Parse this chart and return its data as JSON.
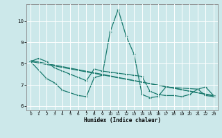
{
  "xlabel": "Humidex (Indice chaleur)",
  "background_color": "#cce8ea",
  "grid_color": "#ffffff",
  "line_color": "#1a7a6e",
  "xlim": [
    -0.5,
    23.5
  ],
  "ylim": [
    5.8,
    10.8
  ],
  "xticks": [
    0,
    1,
    2,
    3,
    4,
    5,
    6,
    7,
    8,
    9,
    10,
    11,
    12,
    13,
    14,
    15,
    16,
    17,
    18,
    19,
    20,
    21,
    22,
    23
  ],
  "yticks": [
    6,
    7,
    8,
    9,
    10
  ],
  "line1_x": [
    0,
    1,
    2,
    3,
    4,
    5,
    6,
    7,
    8,
    9,
    10,
    11,
    12,
    13,
    14,
    15,
    16,
    17,
    18,
    19,
    20,
    21,
    22,
    23
  ],
  "line1_y": [
    8.1,
    8.25,
    8.1,
    7.8,
    7.65,
    7.5,
    7.35,
    7.2,
    7.75,
    7.65,
    7.6,
    7.55,
    7.5,
    7.45,
    7.4,
    6.7,
    6.55,
    6.5,
    6.5,
    6.45,
    6.55,
    6.8,
    6.9,
    6.5
  ],
  "line2_x": [
    0,
    2,
    3,
    4,
    6,
    7,
    8,
    9,
    10,
    11,
    12,
    13,
    14,
    15,
    16,
    17,
    21,
    22,
    23
  ],
  "line2_y": [
    8.1,
    7.3,
    7.1,
    6.75,
    6.5,
    6.45,
    7.35,
    7.45,
    9.5,
    10.55,
    9.3,
    8.45,
    6.55,
    6.4,
    6.45,
    6.9,
    6.8,
    6.5,
    6.45
  ],
  "line3_x": [
    0,
    23
  ],
  "line3_y": [
    8.1,
    6.5
  ],
  "line4_x": [
    0,
    23
  ],
  "line4_y": [
    8.15,
    6.48
  ]
}
